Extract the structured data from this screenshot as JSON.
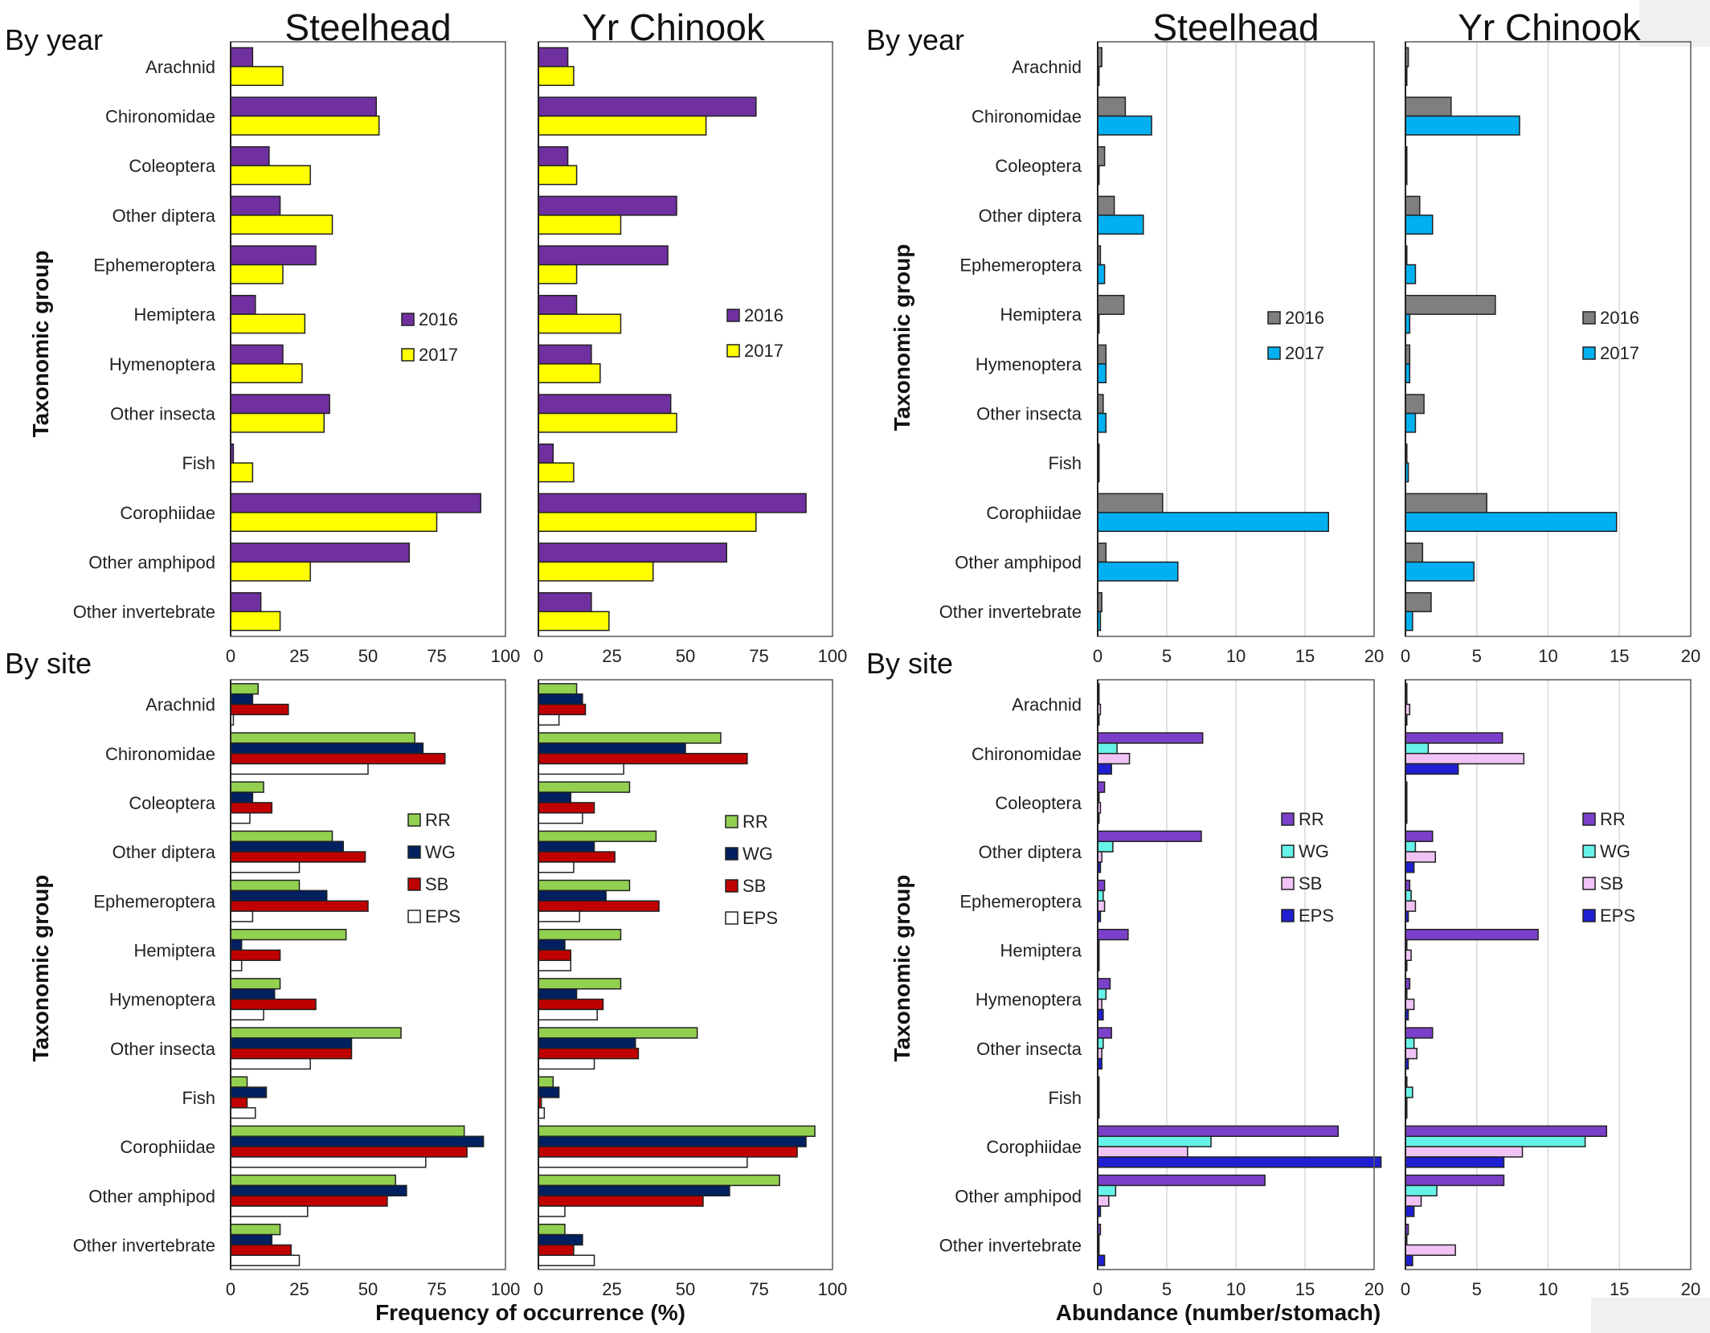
{
  "titles": {
    "col1": "Steelhead",
    "col2": "Yr Chinook",
    "col3": "Steelhead",
    "col4": "Yr Chinook",
    "by_year_left": "By year",
    "by_site_left": "By site",
    "by_year_right": "By year",
    "by_site_right": "By site",
    "ylabel_tl": "Taxonomic  group",
    "ylabel_bl": "Taxonomic  group",
    "ylabel_tr": "Taxonomic  group",
    "ylabel_br": "Taxonomic  group",
    "xlabel_left": "Frequency of occurrence (%)",
    "xlabel_right": "Abundance  (number/stomach)"
  },
  "chart_data": [
    {
      "id": "freq-year-steelhead",
      "type": "bar",
      "orientation": "horizontal",
      "title": "Steelhead",
      "categories": [
        "Arachnid",
        "Chironomidae",
        "Coleoptera",
        "Other diptera",
        "Ephemeroptera",
        "Hemiptera",
        "Hymenoptera",
        "Other insecta",
        "Fish",
        "Corophiidae",
        "Other amphipod",
        "Other invertebrate"
      ],
      "xlim": [
        0,
        100
      ],
      "xticks": [
        0,
        25,
        50,
        75,
        100
      ],
      "legend": "right-middle",
      "series": [
        {
          "name": "2016",
          "color": "#7030a0",
          "values": [
            8,
            53,
            14,
            18,
            31,
            9,
            19,
            36,
            1,
            91,
            65,
            11
          ]
        },
        {
          "name": "2017",
          "color": "#ffff00",
          "values": [
            19,
            54,
            29,
            37,
            19,
            27,
            26,
            34,
            8,
            75,
            29,
            18
          ]
        }
      ]
    },
    {
      "id": "freq-year-chinook",
      "type": "bar",
      "orientation": "horizontal",
      "title": "Yr Chinook",
      "categories": [
        "Arachnid",
        "Chironomidae",
        "Coleoptera",
        "Other diptera",
        "Ephemeroptera",
        "Hemiptera",
        "Hymenoptera",
        "Other insecta",
        "Fish",
        "Corophiidae",
        "Other amphipod",
        "Other invertebrate"
      ],
      "xlim": [
        0,
        100
      ],
      "xticks": [
        0,
        25,
        50,
        75,
        100
      ],
      "legend": "right-middle",
      "series": [
        {
          "name": "2016",
          "color": "#7030a0",
          "values": [
            10,
            74,
            10,
            47,
            44,
            13,
            18,
            45,
            5,
            91,
            64,
            18
          ]
        },
        {
          "name": "2017",
          "color": "#ffff00",
          "values": [
            12,
            57,
            13,
            28,
            13,
            28,
            21,
            47,
            12,
            74,
            39,
            24
          ]
        }
      ]
    },
    {
      "id": "abund-year-steelhead",
      "type": "bar",
      "orientation": "horizontal",
      "title": "Steelhead",
      "categories": [
        "Arachnid",
        "Chironomidae",
        "Coleoptera",
        "Other diptera",
        "Ephemeroptera",
        "Hemiptera",
        "Hymenoptera",
        "Other insecta",
        "Fish",
        "Corophiidae",
        "Other amphipod",
        "Other invertebrate"
      ],
      "xlim": [
        0,
        20
      ],
      "xticks": [
        0,
        5,
        10,
        15,
        20
      ],
      "grid": true,
      "legend": "right-middle",
      "series": [
        {
          "name": "2016",
          "color": "#7f7f7f",
          "values": [
            0.3,
            2.0,
            0.5,
            1.2,
            0.2,
            1.9,
            0.6,
            0.4,
            0.1,
            4.7,
            0.6,
            0.3
          ]
        },
        {
          "name": "2017",
          "color": "#00b0f0",
          "values": [
            0.1,
            3.9,
            0.1,
            3.3,
            0.5,
            0.1,
            0.6,
            0.6,
            0.1,
            16.7,
            5.8,
            0.2
          ]
        }
      ]
    },
    {
      "id": "abund-year-chinook",
      "type": "bar",
      "orientation": "horizontal",
      "title": "Yr Chinook",
      "categories": [
        "Arachnid",
        "Chironomidae",
        "Coleoptera",
        "Other diptera",
        "Ephemeroptera",
        "Hemiptera",
        "Hymenoptera",
        "Other insecta",
        "Fish",
        "Corophiidae",
        "Other amphipod",
        "Other invertebrate"
      ],
      "xlim": [
        0,
        20
      ],
      "xticks": [
        0,
        5,
        10,
        15,
        20
      ],
      "grid": true,
      "legend": "right-middle",
      "series": [
        {
          "name": "2016",
          "color": "#7f7f7f",
          "values": [
            0.2,
            3.2,
            0.1,
            1.0,
            0.1,
            6.3,
            0.3,
            1.3,
            0.1,
            5.7,
            1.2,
            1.8
          ]
        },
        {
          "name": "2017",
          "color": "#00b0f0",
          "values": [
            0.1,
            8.0,
            0.1,
            1.9,
            0.7,
            0.3,
            0.3,
            0.7,
            0.2,
            14.8,
            4.8,
            0.5
          ]
        }
      ]
    },
    {
      "id": "freq-site-steelhead",
      "type": "bar",
      "orientation": "horizontal",
      "title": "",
      "categories": [
        "Arachnid",
        "Chironomidae",
        "Coleoptera",
        "Other diptera",
        "Ephemeroptera",
        "Hemiptera",
        "Hymenoptera",
        "Other insecta",
        "Fish",
        "Corophiidae",
        "Other amphipod",
        "Other invertebrate"
      ],
      "xlim": [
        0,
        100
      ],
      "xticks": [
        0,
        25,
        50,
        75,
        100
      ],
      "xlabel": "Frequency of occurrence (%)",
      "legend": "right-middle",
      "series": [
        {
          "name": "RR",
          "color": "#92d050",
          "values": [
            10,
            67,
            12,
            37,
            25,
            42,
            18,
            62,
            6,
            85,
            60,
            18
          ]
        },
        {
          "name": "WG",
          "color": "#002060",
          "values": [
            8,
            70,
            8,
            41,
            35,
            4,
            16,
            44,
            13,
            92,
            64,
            15
          ]
        },
        {
          "name": "SB",
          "color": "#c00000",
          "values": [
            21,
            78,
            15,
            49,
            50,
            18,
            31,
            44,
            6,
            86,
            57,
            22
          ]
        },
        {
          "name": "EPS",
          "color": "#ffffff",
          "values": [
            1,
            50,
            7,
            25,
            8,
            4,
            12,
            29,
            9,
            71,
            28,
            25
          ]
        }
      ]
    },
    {
      "id": "freq-site-chinook",
      "type": "bar",
      "orientation": "horizontal",
      "title": "",
      "categories": [
        "Arachnid",
        "Chironomidae",
        "Coleoptera",
        "Other diptera",
        "Ephemeroptera",
        "Hemiptera",
        "Hymenoptera",
        "Other insecta",
        "Fish",
        "Corophiidae",
        "Other amphipod",
        "Other invertebrate"
      ],
      "xlim": [
        0,
        100
      ],
      "xticks": [
        0,
        25,
        50,
        75,
        100
      ],
      "xlabel": "Frequency of occurrence (%)",
      "legend": "right-middle",
      "series": [
        {
          "name": "RR",
          "color": "#92d050",
          "values": [
            13,
            62,
            31,
            40,
            31,
            28,
            28,
            54,
            5,
            94,
            82,
            9
          ]
        },
        {
          "name": "WG",
          "color": "#002060",
          "values": [
            15,
            50,
            11,
            19,
            23,
            9,
            13,
            33,
            7,
            91,
            65,
            15
          ]
        },
        {
          "name": "SB",
          "color": "#c00000",
          "values": [
            16,
            71,
            19,
            26,
            41,
            11,
            22,
            34,
            1,
            88,
            56,
            12
          ]
        },
        {
          "name": "EPS",
          "color": "#ffffff",
          "values": [
            7,
            29,
            15,
            12,
            14,
            11,
            20,
            19,
            2,
            71,
            9,
            19
          ]
        }
      ]
    },
    {
      "id": "abund-site-steelhead",
      "type": "bar",
      "orientation": "horizontal",
      "title": "",
      "categories": [
        "Arachnid",
        "Chironomidae",
        "Coleoptera",
        "Other diptera",
        "Ephemeroptera",
        "Hemiptera",
        "Hymenoptera",
        "Other insecta",
        "Fish",
        "Corophiidae",
        "Other amphipod",
        "Other invertebrate"
      ],
      "xlim": [
        0,
        20
      ],
      "xticks": [
        0,
        5,
        10,
        15,
        20
      ],
      "grid": true,
      "xlabel": "Abundance  (number/stomach)",
      "legend": "right-middle",
      "series": [
        {
          "name": "RR",
          "color": "#7b40c9",
          "values": [
            0.1,
            7.6,
            0.5,
            7.5,
            0.5,
            2.2,
            0.9,
            1.0,
            0.1,
            17.4,
            12.1,
            0.2
          ]
        },
        {
          "name": "WG",
          "color": "#66f2e8",
          "values": [
            0.1,
            1.4,
            0.1,
            1.1,
            0.4,
            0.1,
            0.6,
            0.4,
            0.1,
            8.2,
            1.3,
            0.1
          ]
        },
        {
          "name": "SB",
          "color": "#f0c2f5",
          "values": [
            0.2,
            2.3,
            0.2,
            0.3,
            0.5,
            0.1,
            0.3,
            0.3,
            0.1,
            6.5,
            0.8,
            0.1
          ]
        },
        {
          "name": "EPS",
          "color": "#1f1fd1",
          "values": [
            0.1,
            1.0,
            0.1,
            0.2,
            0.2,
            0.1,
            0.4,
            0.3,
            0.1,
            20.5,
            0.2,
            0.5
          ]
        }
      ]
    },
    {
      "id": "abund-site-chinook",
      "type": "bar",
      "orientation": "horizontal",
      "title": "",
      "categories": [
        "Arachnid",
        "Chironomidae",
        "Coleoptera",
        "Other diptera",
        "Ephemeroptera",
        "Hemiptera",
        "Hymenoptera",
        "Other insecta",
        "Fish",
        "Corophiidae",
        "Other amphipod",
        "Other invertebrate"
      ],
      "xlim": [
        0,
        20
      ],
      "xticks": [
        0,
        5,
        10,
        15,
        20
      ],
      "grid": true,
      "xlabel": "Abundance  (number/stomach)",
      "legend": "right-middle",
      "series": [
        {
          "name": "RR",
          "color": "#7b40c9",
          "values": [
            0.1,
            6.8,
            0.1,
            1.9,
            0.3,
            9.3,
            0.3,
            1.9,
            0.1,
            14.1,
            6.9,
            0.2
          ]
        },
        {
          "name": "WG",
          "color": "#66f2e8",
          "values": [
            0.1,
            1.6,
            0.1,
            0.7,
            0.4,
            0.1,
            0.1,
            0.6,
            0.5,
            12.6,
            2.2,
            0.1
          ]
        },
        {
          "name": "SB",
          "color": "#f0c2f5",
          "values": [
            0.3,
            8.3,
            0.1,
            2.1,
            0.7,
            0.4,
            0.6,
            0.8,
            0.1,
            8.2,
            1.1,
            3.5
          ]
        },
        {
          "name": "EPS",
          "color": "#1f1fd1",
          "values": [
            0.1,
            3.7,
            0.1,
            0.6,
            0.2,
            0.1,
            0.2,
            0.2,
            0.1,
            6.9,
            0.6,
            0.5
          ]
        }
      ]
    }
  ]
}
